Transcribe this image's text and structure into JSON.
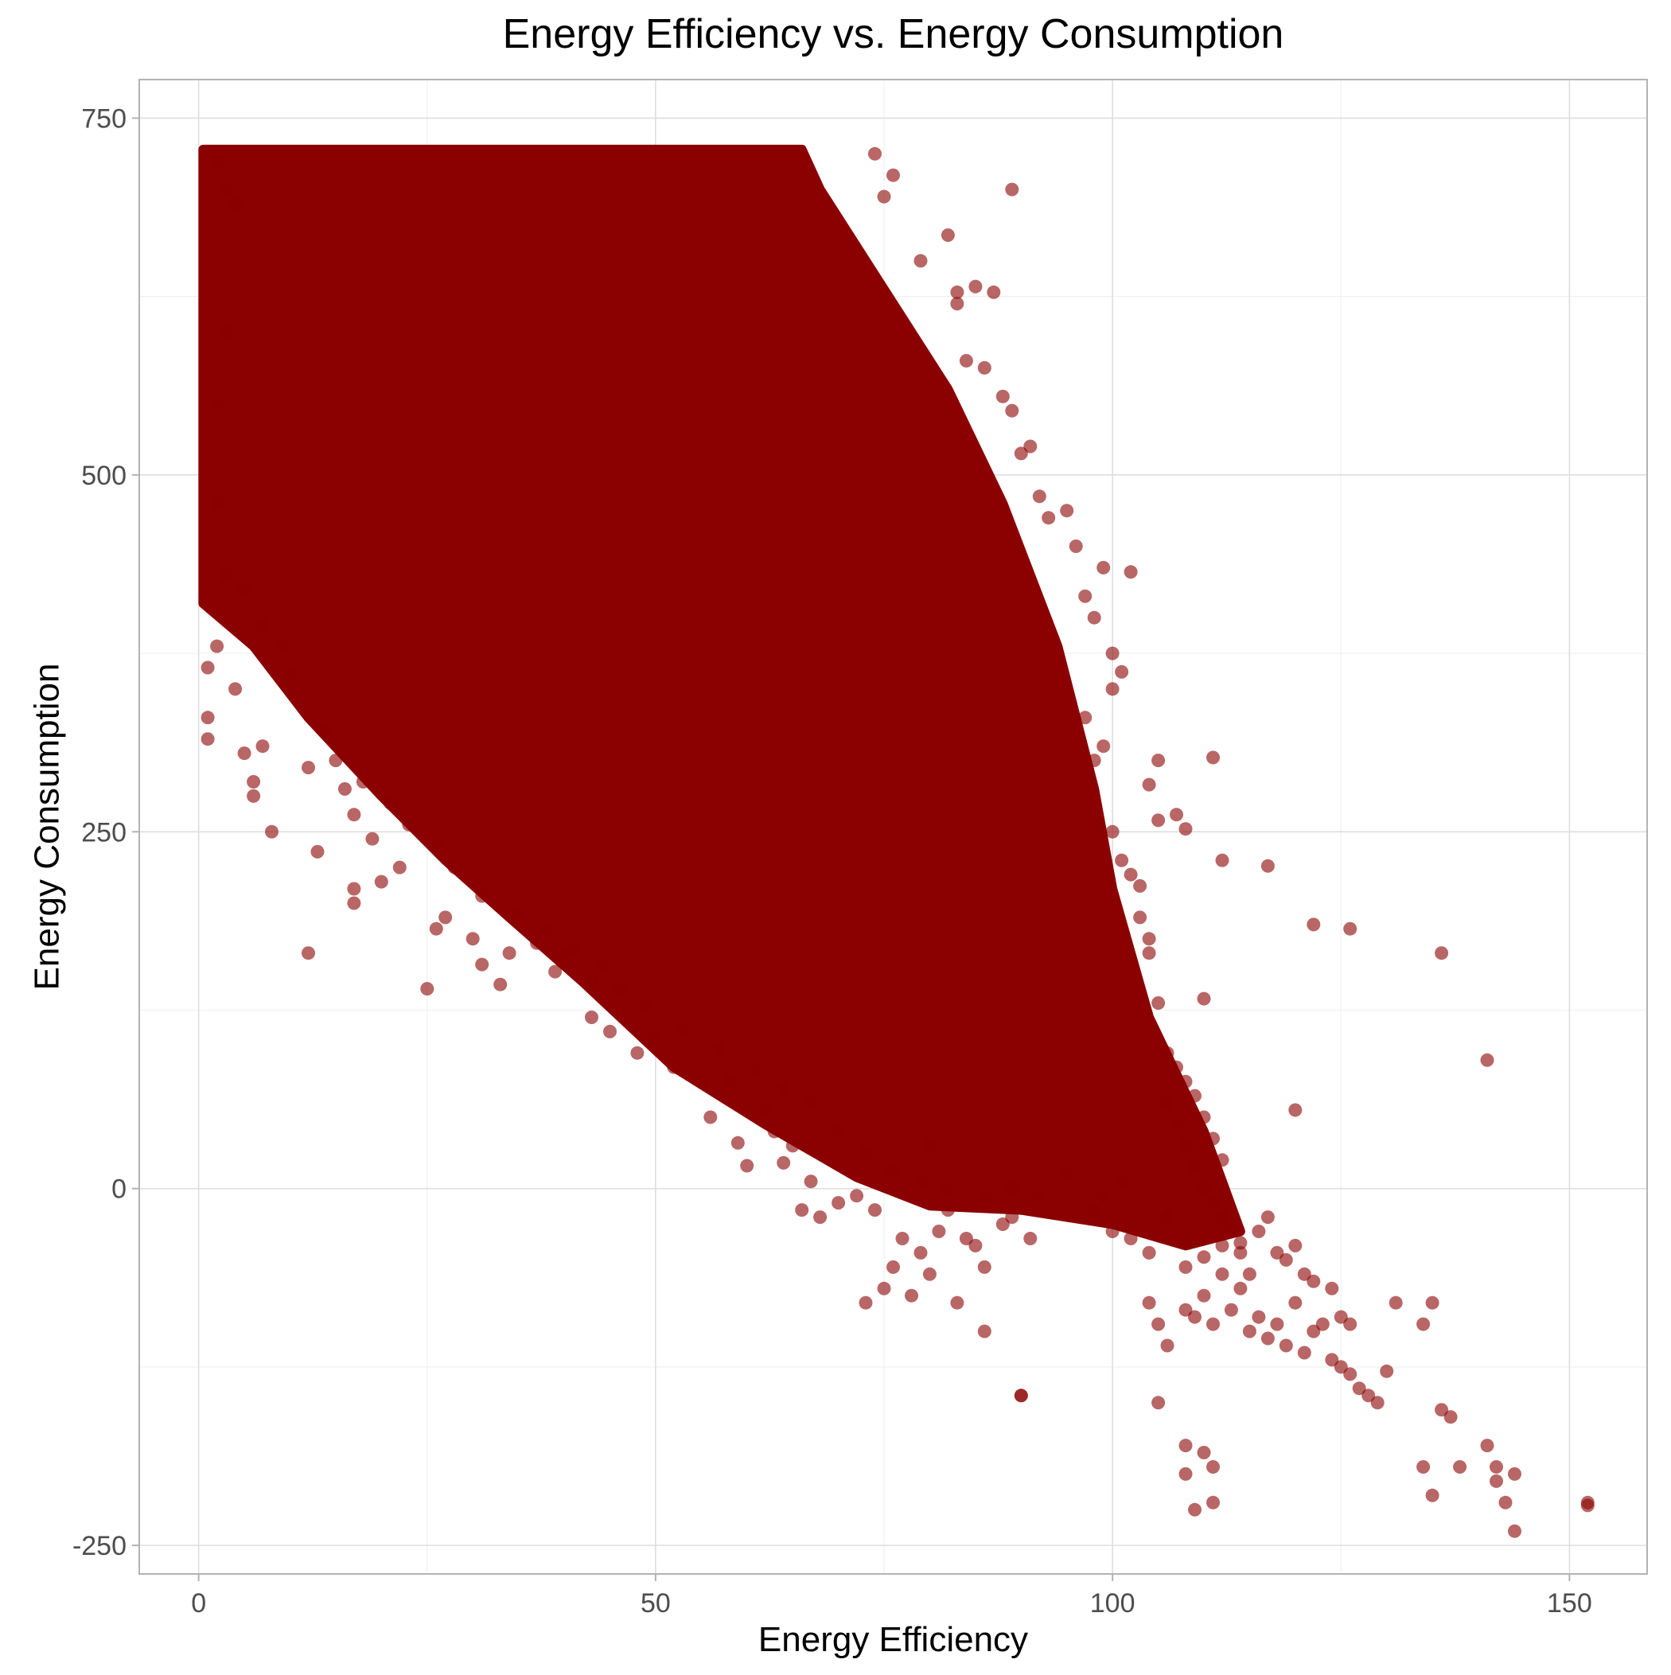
{
  "chart_data": {
    "type": "scatter",
    "title": "Energy Efficiency vs. Energy Consumption",
    "xlabel": "Energy Efficiency",
    "ylabel": "Energy Consumption",
    "xlim": [
      -6.5,
      158.5
    ],
    "ylim": [
      -270,
      777
    ],
    "x_ticks": [
      0,
      50,
      100,
      150
    ],
    "x_tick_labels": [
      "0",
      "50",
      "100",
      "150"
    ],
    "y_ticks": [
      -250,
      0,
      250,
      500,
      750
    ],
    "y_tick_labels": [
      "-250",
      "0",
      "250",
      "500",
      "750"
    ],
    "grid": true,
    "legend": "none",
    "point_color": "#8b0000",
    "point_opacity": 0.6,
    "dense_region": [
      [
        0.5,
        728
      ],
      [
        66,
        728
      ],
      [
        68,
        700
      ],
      [
        74,
        640
      ],
      [
        82,
        560
      ],
      [
        88,
        480
      ],
      [
        94,
        380
      ],
      [
        98,
        280
      ],
      [
        100,
        210
      ],
      [
        104,
        120
      ],
      [
        110,
        40
      ],
      [
        114,
        -30
      ],
      [
        108,
        -40
      ],
      [
        100,
        -25
      ],
      [
        90,
        -15
      ],
      [
        80,
        -12
      ],
      [
        72,
        8
      ],
      [
        62,
        45
      ],
      [
        52,
        85
      ],
      [
        42,
        145
      ],
      [
        34,
        190
      ],
      [
        27,
        230
      ],
      [
        20,
        275
      ],
      [
        12,
        330
      ],
      [
        6,
        380
      ],
      [
        0.5,
        410
      ]
    ],
    "points": [
      [
        1,
        330
      ],
      [
        1,
        315
      ],
      [
        1,
        365
      ],
      [
        2,
        380
      ],
      [
        4,
        350
      ],
      [
        5,
        305
      ],
      [
        6,
        275
      ],
      [
        6,
        285
      ],
      [
        8,
        250
      ],
      [
        7,
        310
      ],
      [
        12,
        165
      ],
      [
        12,
        295
      ],
      [
        13,
        236
      ],
      [
        16,
        280
      ],
      [
        17,
        262
      ],
      [
        17,
        210
      ],
      [
        17,
        200
      ],
      [
        19,
        245
      ],
      [
        20,
        215
      ],
      [
        22,
        225
      ],
      [
        25,
        140
      ],
      [
        26,
        182
      ],
      [
        27,
        190
      ],
      [
        30,
        175
      ],
      [
        31,
        157
      ],
      [
        33,
        143
      ],
      [
        34,
        165
      ],
      [
        37,
        172
      ],
      [
        39,
        152
      ],
      [
        40,
        165
      ],
      [
        43,
        145
      ],
      [
        43,
        120
      ],
      [
        45,
        110
      ],
      [
        48,
        95
      ],
      [
        50,
        106
      ],
      [
        52,
        85
      ],
      [
        55,
        75
      ],
      [
        56,
        50
      ],
      [
        58,
        75
      ],
      [
        59,
        32
      ],
      [
        60,
        16
      ],
      [
        62,
        55
      ],
      [
        63,
        40
      ],
      [
        64,
        18
      ],
      [
        65,
        30
      ],
      [
        66,
        -15
      ],
      [
        67,
        5
      ],
      [
        68,
        -20
      ],
      [
        70,
        -10
      ],
      [
        72,
        -5
      ],
      [
        73,
        -80
      ],
      [
        74,
        -15
      ],
      [
        75,
        -70
      ],
      [
        76,
        -55
      ],
      [
        77,
        -35
      ],
      [
        78,
        -75
      ],
      [
        79,
        -45
      ],
      [
        80,
        -60
      ],
      [
        81,
        -30
      ],
      [
        83,
        -80
      ],
      [
        84,
        -35
      ],
      [
        86,
        -100
      ],
      [
        86,
        -55
      ],
      [
        88,
        -25
      ],
      [
        89,
        -20
      ],
      [
        90,
        -145
      ],
      [
        91,
        -35
      ],
      [
        80,
        30
      ],
      [
        82,
        -15
      ],
      [
        85,
        -40
      ],
      [
        74,
        725
      ],
      [
        75,
        695
      ],
      [
        76,
        710
      ],
      [
        79,
        650
      ],
      [
        82,
        668
      ],
      [
        83,
        628
      ],
      [
        83,
        620
      ],
      [
        85,
        632
      ],
      [
        87,
        628
      ],
      [
        89,
        700
      ],
      [
        84,
        580
      ],
      [
        86,
        575
      ],
      [
        88,
        555
      ],
      [
        89,
        545
      ],
      [
        90,
        515
      ],
      [
        91,
        520
      ],
      [
        92,
        485
      ],
      [
        93,
        470
      ],
      [
        95,
        475
      ],
      [
        96,
        450
      ],
      [
        97,
        415
      ],
      [
        98,
        400
      ],
      [
        99,
        435
      ],
      [
        100,
        375
      ],
      [
        100,
        350
      ],
      [
        101,
        362
      ],
      [
        102,
        432
      ],
      [
        97,
        330
      ],
      [
        98,
        300
      ],
      [
        99,
        310
      ],
      [
        100,
        250
      ],
      [
        101,
        230
      ],
      [
        102,
        220
      ],
      [
        103,
        212
      ],
      [
        104,
        175
      ],
      [
        104,
        283
      ],
      [
        105,
        300
      ],
      [
        105,
        258
      ],
      [
        107,
        262
      ],
      [
        108,
        252
      ],
      [
        103,
        190
      ],
      [
        104,
        165
      ],
      [
        105,
        130
      ],
      [
        106,
        95
      ],
      [
        107,
        85
      ],
      [
        108,
        75
      ],
      [
        109,
        65
      ],
      [
        110,
        50
      ],
      [
        111,
        35
      ],
      [
        112,
        20
      ],
      [
        106,
        60
      ],
      [
        107,
        45
      ],
      [
        108,
        30
      ],
      [
        109,
        15
      ],
      [
        110,
        0
      ],
      [
        111,
        -10
      ],
      [
        112,
        -20
      ],
      [
        113,
        -30
      ],
      [
        114,
        -45
      ],
      [
        115,
        -60
      ],
      [
        111,
        302
      ],
      [
        112,
        230
      ],
      [
        110,
        133
      ],
      [
        117,
        226
      ],
      [
        120,
        55
      ],
      [
        122,
        185
      ],
      [
        126,
        182
      ],
      [
        136,
        165
      ],
      [
        141,
        90
      ],
      [
        104,
        -80
      ],
      [
        105,
        -95
      ],
      [
        106,
        -110
      ],
      [
        108,
        -85
      ],
      [
        109,
        -90
      ],
      [
        110,
        -75
      ],
      [
        111,
        -95
      ],
      [
        112,
        -60
      ],
      [
        113,
        -85
      ],
      [
        114,
        -70
      ],
      [
        115,
        -100
      ],
      [
        116,
        -90
      ],
      [
        117,
        -105
      ],
      [
        118,
        -95
      ],
      [
        119,
        -110
      ],
      [
        120,
        -80
      ],
      [
        121,
        -115
      ],
      [
        122,
        -100
      ],
      [
        123,
        -95
      ],
      [
        124,
        -120
      ],
      [
        125,
        -125
      ],
      [
        126,
        -130
      ],
      [
        127,
        -140
      ],
      [
        128,
        -145
      ],
      [
        129,
        -150
      ],
      [
        130,
        -128
      ],
      [
        131,
        -80
      ],
      [
        134,
        -95
      ],
      [
        135,
        -80
      ],
      [
        136,
        -155
      ],
      [
        137,
        -160
      ],
      [
        134,
        -195
      ],
      [
        135,
        -215
      ],
      [
        138,
        -195
      ],
      [
        141,
        -180
      ],
      [
        142,
        -195
      ],
      [
        142,
        -205
      ],
      [
        144,
        -200
      ],
      [
        144,
        -240
      ],
      [
        143,
        -220
      ],
      [
        108,
        -180
      ],
      [
        108,
        -200
      ],
      [
        109,
        -225
      ],
      [
        110,
        -185
      ],
      [
        111,
        -195
      ],
      [
        111,
        -220
      ],
      [
        105,
        -150
      ],
      [
        90,
        -145
      ],
      [
        152,
        -220
      ],
      [
        152,
        -222
      ],
      [
        116,
        -30
      ],
      [
        117,
        -20
      ],
      [
        118,
        -45
      ],
      [
        119,
        -50
      ],
      [
        121,
        -60
      ],
      [
        122,
        -65
      ],
      [
        124,
        -70
      ],
      [
        125,
        -90
      ],
      [
        126,
        -95
      ],
      [
        120,
        -40
      ],
      [
        2,
        720
      ],
      [
        3,
        700
      ],
      [
        4,
        690
      ],
      [
        3,
        600
      ],
      [
        2,
        550
      ],
      [
        2,
        480
      ],
      [
        3,
        430
      ],
      [
        5,
        420
      ],
      [
        7,
        395
      ],
      [
        9,
        380
      ],
      [
        10,
        360
      ],
      [
        14,
        320
      ],
      [
        15,
        300
      ],
      [
        18,
        285
      ],
      [
        21,
        270
      ],
      [
        23,
        255
      ],
      [
        26,
        240
      ],
      [
        28,
        225
      ],
      [
        31,
        205
      ],
      [
        35,
        192
      ],
      [
        38,
        180
      ],
      [
        41,
        168
      ],
      [
        44,
        155
      ],
      [
        46,
        140
      ],
      [
        49,
        128
      ],
      [
        53,
        112
      ],
      [
        57,
        98
      ],
      [
        61,
        82
      ],
      [
        64,
        70
      ],
      [
        67,
        60
      ],
      [
        70,
        40
      ],
      [
        73,
        25
      ],
      [
        76,
        12
      ],
      [
        79,
        5
      ],
      [
        82,
        -2
      ],
      [
        86,
        -8
      ],
      [
        89,
        0
      ],
      [
        92,
        -5
      ],
      [
        95,
        10
      ],
      [
        98,
        -15
      ],
      [
        100,
        -30
      ],
      [
        102,
        -35
      ],
      [
        104,
        -45
      ],
      [
        106,
        -20
      ],
      [
        108,
        -55
      ],
      [
        110,
        -48
      ],
      [
        112,
        -40
      ],
      [
        114,
        -38
      ],
      [
        99,
        -5
      ],
      [
        101,
        5
      ]
    ]
  }
}
